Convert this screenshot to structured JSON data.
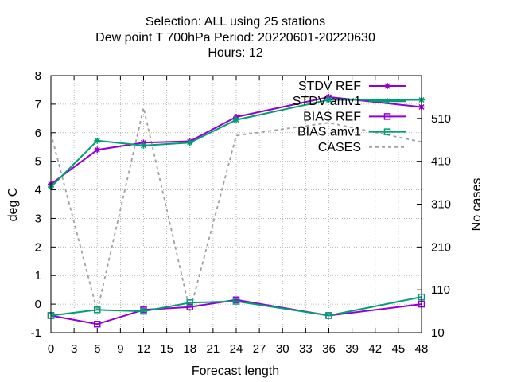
{
  "chart_data": {
    "type": "line",
    "title_lines": [
      "Selection: ALL using    25 stations",
      "Dew point T 700hPa   Period: 20220601-20220630",
      "Hours:  12"
    ],
    "xlabel": "Forecast length",
    "ylabel": "deg C",
    "y2label": "No cases",
    "xlim": [
      0,
      48
    ],
    "ylim": [
      -1,
      8
    ],
    "y2lim": [
      10,
      610
    ],
    "xticks": [
      "0",
      "3",
      "6",
      "9",
      "12",
      "15",
      "18",
      "21",
      "24",
      "27",
      "30",
      "33",
      "36",
      "39",
      "42",
      "45",
      "48"
    ],
    "yticks": [
      "-1",
      "0",
      "1",
      "2",
      "3",
      "4",
      "5",
      "6",
      "7",
      "8"
    ],
    "y2ticks": [
      "10",
      "110",
      "210",
      "310",
      "410",
      "510"
    ],
    "grid": true,
    "legend_position": "top-right",
    "series": [
      {
        "name": "STDV REF",
        "axis": "y",
        "color": "#9400d3",
        "marker": "star",
        "dash": "",
        "x": [
          0,
          6,
          12,
          18,
          24,
          36,
          48
        ],
        "y": [
          4.2,
          5.4,
          5.65,
          5.7,
          6.55,
          7.25,
          6.9
        ]
      },
      {
        "name": "STDV amv1",
        "axis": "y",
        "color": "#009e73",
        "marker": "star",
        "dash": "",
        "x": [
          0,
          6,
          12,
          18,
          24,
          36,
          48
        ],
        "y": [
          4.1,
          5.72,
          5.55,
          5.65,
          6.45,
          7.15,
          7.15
        ]
      },
      {
        "name": "BIAS REF",
        "axis": "y",
        "color": "#9400d3",
        "marker": "square",
        "dash": "",
        "x": [
          0,
          6,
          12,
          18,
          24,
          36,
          48
        ],
        "y": [
          -0.4,
          -0.7,
          -0.2,
          -0.1,
          0.15,
          -0.4,
          0.0
        ]
      },
      {
        "name": "BIAS amv1",
        "axis": "y",
        "color": "#009e73",
        "marker": "square",
        "dash": "",
        "x": [
          0,
          6,
          12,
          18,
          24,
          36,
          48
        ],
        "y": [
          -0.4,
          -0.2,
          -0.25,
          0.05,
          0.1,
          -0.4,
          0.25
        ]
      },
      {
        "name": "CASES",
        "axis": "y2",
        "color": "#a0a0a0",
        "marker": "none",
        "dash": "4,4",
        "x": [
          0,
          6,
          12,
          18,
          24,
          36,
          48
        ],
        "y": [
          475,
          60,
          535,
          60,
          470,
          500,
          455
        ]
      }
    ]
  }
}
